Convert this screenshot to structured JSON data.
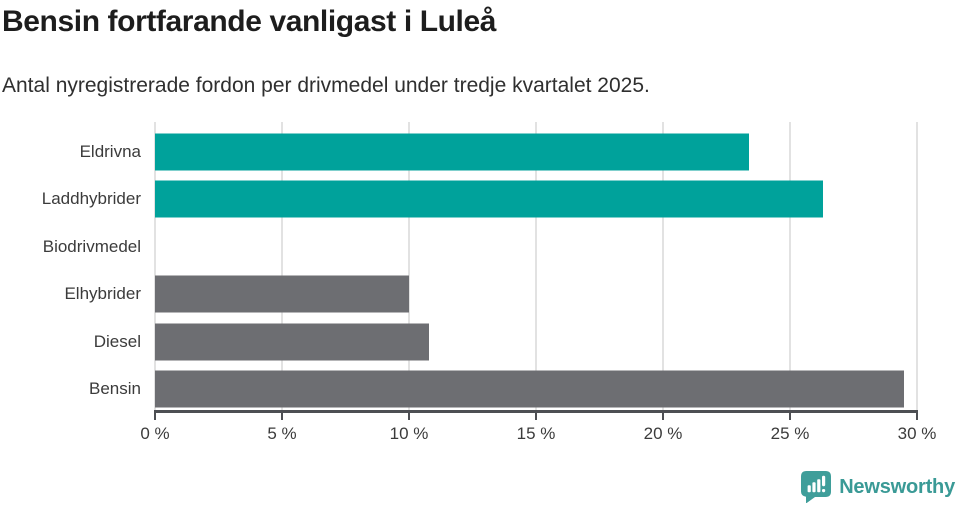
{
  "title": "Bensin fortfarande vanligast i Luleå",
  "subtitle": "Antal nyregistrerade fordon per drivmedel under tredje kvartalet 2025.",
  "chart_data": {
    "type": "bar",
    "orientation": "horizontal",
    "categories": [
      "Eldrivna",
      "Laddhybrider",
      "Biodrivmedel",
      "Elhybrider",
      "Diesel",
      "Bensin"
    ],
    "values": [
      23.4,
      26.3,
      0,
      10,
      10.8,
      29.5
    ],
    "unit": "%",
    "bar_colors": [
      "#00a29b",
      "#00a29b",
      "#6d6e72",
      "#6d6e72",
      "#6d6e72",
      "#6d6e72"
    ],
    "xlim": [
      0,
      30
    ],
    "x_ticks": [
      0,
      5,
      10,
      15,
      20,
      25,
      30
    ],
    "x_tick_labels": [
      "0 %",
      "5 %",
      "10 %",
      "15 %",
      "20 %",
      "25 %",
      "30 %"
    ],
    "grid": true,
    "legend": "none",
    "value_labels": "none"
  },
  "colors": {
    "accent_teal": "#00a29b",
    "bar_gray": "#6d6e72",
    "gridline": "#e2e2e2",
    "axis": "#4d4f53",
    "title_text": "#1d1d1d",
    "body_text": "#3b3b3b",
    "logo_teal": "#3f9e9a"
  },
  "footer": {
    "brand": "Newsworthy",
    "logo_icon": "bar-chart-speech-bubble-icon"
  }
}
